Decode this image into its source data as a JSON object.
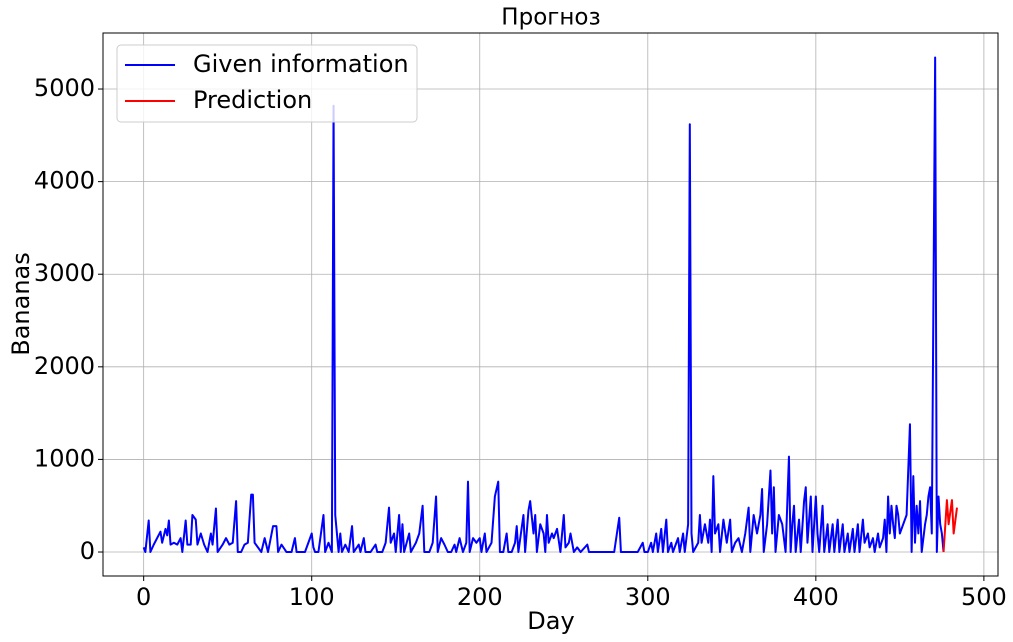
{
  "chart_data": {
    "type": "line",
    "title": "Прогноз",
    "xlabel": "Day",
    "ylabel": "Bananas",
    "xlim": [
      -24.2,
      508.4
    ],
    "ylim": [
      -259,
      5605
    ],
    "xticks": [
      0,
      100,
      200,
      300,
      400,
      500
    ],
    "yticks": [
      0,
      1000,
      2000,
      3000,
      4000,
      5000
    ],
    "grid": true,
    "legend": "upper left",
    "series": [
      {
        "name": "Given information",
        "color": "#0000ff",
        "x": [
          0,
          1,
          3,
          4,
          6,
          8,
          10,
          11,
          13,
          14,
          15,
          16,
          18,
          20,
          22,
          23,
          25,
          26,
          28,
          29,
          31,
          32,
          34,
          36,
          38,
          40,
          41,
          43,
          44,
          47,
          49,
          51,
          53,
          55,
          56,
          58,
          60,
          62,
          64,
          65,
          66,
          68,
          70,
          72,
          74,
          77,
          79,
          80,
          82,
          85,
          88,
          90,
          91,
          94,
          96,
          100,
          101,
          102,
          104,
          107,
          108,
          110,
          112,
          113,
          114,
          116,
          117,
          118,
          120,
          122,
          124,
          125,
          128,
          129,
          131,
          132,
          135,
          138,
          139,
          142,
          144,
          146,
          147,
          149,
          150,
          152,
          153,
          154,
          155,
          158,
          159,
          162,
          164,
          166,
          167,
          170,
          172,
          174,
          175,
          177,
          179,
          181,
          183,
          185,
          186,
          188,
          190,
          192,
          193,
          194,
          196,
          198,
          200,
          201,
          203,
          204,
          207,
          209,
          211,
          212,
          214,
          216,
          217,
          219,
          221,
          222,
          223,
          226,
          227,
          229,
          230,
          232,
          233,
          234,
          236,
          238,
          239,
          240,
          241,
          243,
          244,
          246,
          248,
          250,
          251,
          253,
          254,
          256,
          258,
          260,
          264,
          265,
          272,
          280,
          283,
          284,
          290,
          294,
          297,
          298,
          300,
          302,
          303,
          305,
          306,
          308,
          309,
          311,
          312,
          314,
          315,
          318,
          319,
          321,
          322,
          324,
          325,
          326,
          327,
          330,
          331,
          332,
          334,
          336,
          337,
          338,
          339,
          340,
          342,
          343,
          345,
          347,
          349,
          350,
          352,
          354,
          356,
          358,
          360,
          361,
          363,
          365,
          367,
          368,
          369,
          371,
          373,
          374,
          375,
          376,
          378,
          380,
          382,
          384,
          385,
          386,
          387,
          388,
          390,
          391,
          393,
          394,
          395,
          397,
          398,
          400,
          401,
          402,
          404,
          405,
          407,
          408,
          410,
          411,
          413,
          414,
          416,
          417,
          419,
          420,
          422,
          423,
          425,
          426,
          428,
          429,
          431,
          432,
          434,
          435,
          437,
          438,
          440,
          441,
          442,
          443,
          444,
          445,
          446,
          447,
          448,
          449,
          450,
          452,
          454,
          456,
          457,
          458,
          459,
          460,
          461,
          462,
          463,
          465,
          466,
          467,
          468,
          469,
          471,
          472,
          473,
          474,
          475,
          476
        ],
        "values": [
          50,
          0,
          340,
          0,
          80,
          150,
          220,
          100,
          250,
          180,
          340,
          80,
          100,
          80,
          150,
          0,
          340,
          80,
          80,
          400,
          350,
          80,
          200,
          80,
          0,
          200,
          80,
          470,
          0,
          80,
          150,
          80,
          100,
          550,
          0,
          0,
          80,
          100,
          620,
          620,
          100,
          50,
          0,
          150,
          0,
          280,
          280,
          0,
          80,
          0,
          0,
          150,
          0,
          0,
          0,
          200,
          50,
          0,
          0,
          400,
          0,
          100,
          0,
          4820,
          400,
          0,
          200,
          0,
          80,
          0,
          280,
          0,
          80,
          0,
          150,
          0,
          0,
          80,
          0,
          0,
          100,
          480,
          100,
          200,
          0,
          400,
          0,
          300,
          0,
          200,
          0,
          100,
          200,
          500,
          0,
          0,
          100,
          600,
          0,
          150,
          80,
          0,
          0,
          80,
          0,
          150,
          0,
          100,
          760,
          0,
          150,
          100,
          150,
          0,
          200,
          0,
          100,
          600,
          760,
          0,
          0,
          200,
          0,
          0,
          100,
          280,
          0,
          400,
          0,
          450,
          550,
          200,
          400,
          0,
          300,
          200,
          0,
          400,
          100,
          200,
          150,
          250,
          0,
          400,
          50,
          100,
          200,
          0,
          50,
          0,
          80,
          0,
          0,
          0,
          370,
          0,
          0,
          0,
          100,
          0,
          0,
          100,
          0,
          200,
          0,
          250,
          0,
          350,
          0,
          100,
          0,
          150,
          0,
          200,
          0,
          300,
          4620,
          200,
          0,
          100,
          400,
          100,
          300,
          100,
          350,
          0,
          820,
          200,
          300,
          0,
          350,
          100,
          350,
          0,
          100,
          150,
          0,
          200,
          480,
          0,
          400,
          200,
          400,
          680,
          0,
          300,
          880,
          200,
          700,
          0,
          400,
          300,
          0,
          1030,
          0,
          300,
          500,
          0,
          350,
          0,
          550,
          700,
          100,
          600,
          0,
          600,
          200,
          0,
          500,
          0,
          300,
          0,
          300,
          0,
          350,
          0,
          300,
          0,
          200,
          0,
          250,
          0,
          300,
          0,
          350,
          100,
          200,
          50,
          150,
          0,
          200,
          50,
          150,
          350,
          0,
          600,
          200,
          500,
          300,
          150,
          500,
          400,
          200,
          300,
          400,
          1380,
          0,
          820,
          100,
          500,
          200,
          550,
          0,
          300,
          400,
          600,
          700,
          200,
          5340,
          0,
          600,
          300,
          200,
          0
        ]
      },
      {
        "name": "Prediction",
        "color": "#ff0000",
        "x": [
          476,
          478,
          479,
          481,
          482,
          484
        ],
        "values": [
          0,
          560,
          300,
          560,
          200,
          480
        ]
      }
    ]
  }
}
